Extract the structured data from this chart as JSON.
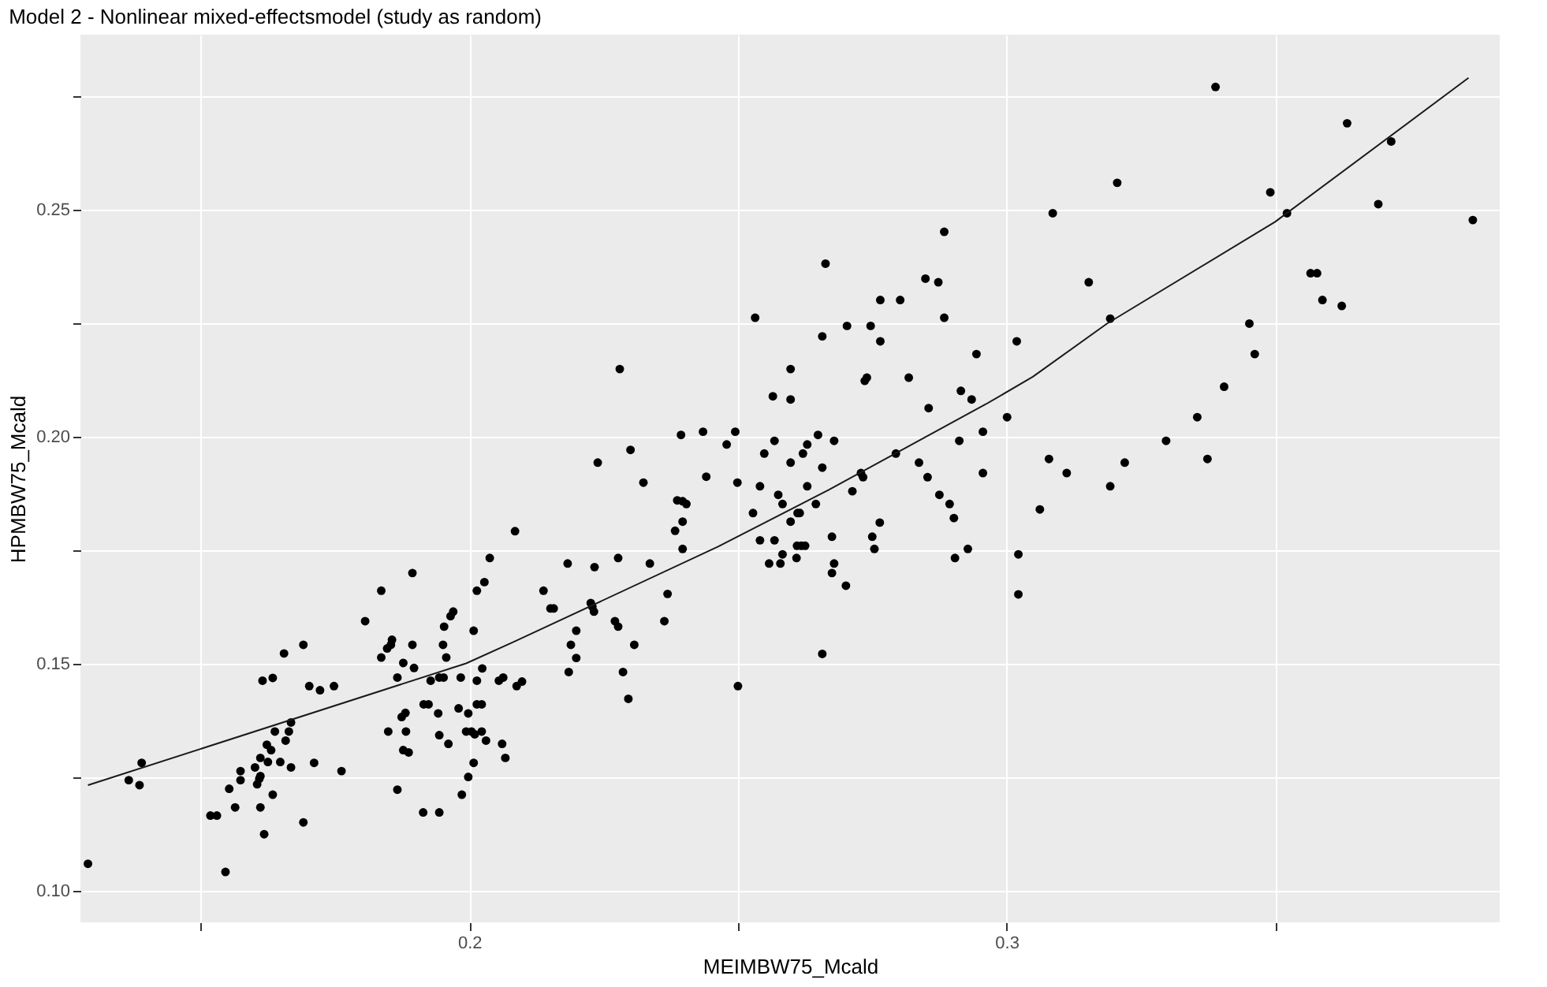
{
  "chart_data": {
    "type": "scatter",
    "title": "Model 2 - Nonlinear mixed-effectsmodel (study as random)",
    "xlabel": "MEIMBW75_Mcald",
    "ylabel": "HPMBW75_Mcald",
    "xlim": [
      0.1276,
      0.3918
    ],
    "ylim": [
      0.0931,
      0.2885
    ],
    "xticks": [
      {
        "value": 0.15,
        "label": null
      },
      {
        "value": 0.2,
        "label": "0.2"
      },
      {
        "value": 0.25,
        "label": null
      },
      {
        "value": 0.3,
        "label": "0.3"
      },
      {
        "value": 0.35,
        "label": null
      }
    ],
    "yticks": [
      {
        "value": 0.1,
        "label": "0.10"
      },
      {
        "value": 0.125,
        "label": null
      },
      {
        "value": 0.15,
        "label": "0.15"
      },
      {
        "value": 0.175,
        "label": null
      },
      {
        "value": 0.2,
        "label": "0.20"
      },
      {
        "value": 0.225,
        "label": null
      },
      {
        "value": 0.25,
        "label": "0.25"
      },
      {
        "value": 0.275,
        "label": null
      }
    ],
    "grid": true,
    "series": [
      {
        "type": "scatter",
        "color": "#000000",
        "marker": "circle",
        "x": [
          0.129,
          0.1546,
          0.1366,
          0.1386,
          0.139,
          0.1518,
          0.153,
          0.1553,
          0.1564,
          0.1574,
          0.1574,
          0.1601,
          0.1605,
          0.1609,
          0.1611,
          0.1611,
          0.1618,
          0.1634,
          0.1611,
          0.1623,
          0.1631,
          0.1625,
          0.1648,
          0.1668,
          0.1658,
          0.1638,
          0.1664,
          0.1668,
          0.1615,
          0.1634,
          0.1655,
          0.1691,
          0.1702,
          0.1722,
          0.1748,
          0.1711,
          0.1691,
          0.1762,
          0.1806,
          0.1836,
          0.1894,
          0.1836,
          0.1847,
          0.1854,
          0.1856,
          0.1877,
          0.1866,
          0.1894,
          0.1897,
          0.1849,
          0.1882,
          0.1874,
          0.1881,
          0.1877,
          0.1887,
          0.1866,
          0.1914,
          0.1944,
          0.1915,
          0.1924,
          0.1942,
          0.1928,
          0.1944,
          0.1952,
          0.1944,
          0.1961,
          0.1951,
          0.1957,
          0.1953,
          0.1965,
          0.197,
          0.1984,
          0.198,
          0.1998,
          0.1994,
          0.2004,
          0.201,
          0.2023,
          0.2031,
          0.2008,
          0.1998,
          0.1986,
          0.2008,
          0.2014,
          0.2028,
          0.2038,
          0.2085,
          0.2014,
          0.2014,
          0.2023,
          0.2024,
          0.2055,
          0.2063,
          0.2061,
          0.2067,
          0.2088,
          0.2098,
          0.2138,
          0.2151,
          0.2157,
          0.228,
          0.2239,
          0.23,
          0.2324,
          0.2394,
          0.2435,
          0.2479,
          0.2495,
          0.2441,
          0.2499,
          0.2387,
          0.2397,
          0.2404,
          0.2397,
          0.2383,
          0.2397,
          0.2183,
          0.2233,
          0.2277,
          0.2336,
          0.2226,
          0.2229,
          0.2232,
          0.2271,
          0.2277,
          0.2199,
          0.2189,
          0.2199,
          0.2185,
          0.2307,
          0.2286,
          0.2296,
          0.2369,
          0.2363,
          0.25,
          0.2657,
          0.2532,
          0.2663,
          0.2657,
          0.2598,
          0.2565,
          0.2598,
          0.2649,
          0.2568,
          0.2549,
          0.2629,
          0.2621,
          0.2598,
          0.2657,
          0.2541,
          0.2629,
          0.2575,
          0.2583,
          0.2645,
          0.2528,
          0.2611,
          0.2615,
          0.2598,
          0.2541,
          0.2568,
          0.261,
          0.2618,
          0.2625,
          0.2583,
          0.2558,
          0.2579,
          0.2609,
          0.2884,
          0.2849,
          0.2873,
          0.2765,
          0.2802,
          0.2884,
          0.2703,
          0.2747,
          0.2765,
          0.3019,
          0.2944,
          0.2736,
          0.274,
          0.2818,
          0.2915,
          0.2935,
          0.2855,
          0.3001,
          0.2679,
          0.2794,
          0.2912,
          0.2956,
          0.2956,
          0.2837,
          0.2853,
          0.2729,
          0.2733,
          0.2713,
          0.2875,
          0.2894,
          0.2902,
          0.2675,
          0.2679,
          0.2675,
          0.2701,
          0.2764,
          0.275,
          0.2754,
          0.2904,
          0.2928,
          0.3022,
          0.3022,
          0.3389,
          0.3634,
          0.3716,
          0.3206,
          0.3086,
          0.3491,
          0.3522,
          0.3692,
          0.3868,
          0.3153,
          0.3193,
          0.3566,
          0.3578,
          0.3588,
          0.3624,
          0.3452,
          0.3462,
          0.3405,
          0.3355,
          0.3297,
          0.3374,
          0.3079,
          0.3112,
          0.322,
          0.3193,
          0.3062
        ],
        "values": [
          0.106,
          0.1042,
          0.1244,
          0.1233,
          0.1282,
          0.1166,
          0.1166,
          0.1225,
          0.1184,
          0.1264,
          0.1244,
          0.1272,
          0.1235,
          0.1247,
          0.1253,
          0.1184,
          0.1125,
          0.1212,
          0.1293,
          0.1322,
          0.131,
          0.1284,
          0.1284,
          0.1272,
          0.1331,
          0.1351,
          0.1351,
          0.1371,
          0.1463,
          0.1469,
          0.1523,
          0.1542,
          0.1451,
          0.1442,
          0.1451,
          0.1282,
          0.1151,
          0.1264,
          0.1594,
          0.1661,
          0.17,
          0.1514,
          0.1534,
          0.1542,
          0.1553,
          0.1502,
          0.147,
          0.1542,
          0.1491,
          0.1351,
          0.1351,
          0.1383,
          0.1392,
          0.131,
          0.1305,
          0.1223,
          0.1173,
          0.1173,
          0.1411,
          0.1411,
          0.1391,
          0.1463,
          0.147,
          0.147,
          0.1343,
          0.1324,
          0.1542,
          0.1514,
          0.1582,
          0.1605,
          0.1615,
          0.147,
          0.1402,
          0.1391,
          0.1351,
          0.1351,
          0.1345,
          0.1351,
          0.1331,
          0.1282,
          0.1251,
          0.1212,
          0.1573,
          0.1661,
          0.168,
          0.1733,
          0.1792,
          0.1463,
          0.1411,
          0.1411,
          0.149,
          0.1463,
          0.147,
          0.1324,
          0.1293,
          0.1451,
          0.1461,
          0.1661,
          0.1622,
          0.1622,
          0.2149,
          0.1943,
          0.1971,
          0.1899,
          0.2004,
          0.2011,
          0.1983,
          0.2011,
          0.1912,
          0.1899,
          0.186,
          0.1858,
          0.1852,
          0.1813,
          0.1793,
          0.1753,
          0.1721,
          0.1713,
          0.1733,
          0.1721,
          0.1634,
          0.1626,
          0.1615,
          0.1594,
          0.1582,
          0.1573,
          0.1542,
          0.1513,
          0.1482,
          0.1542,
          0.1482,
          0.1423,
          0.1654,
          0.1594,
          0.1451,
          0.1522,
          0.2262,
          0.2381,
          0.2221,
          0.2149,
          0.2089,
          0.2082,
          0.2004,
          0.1991,
          0.1963,
          0.1983,
          0.1963,
          0.1943,
          0.1932,
          0.1891,
          0.1891,
          0.1872,
          0.1852,
          0.1852,
          0.1832,
          0.1832,
          0.1832,
          0.1813,
          0.1772,
          0.1772,
          0.176,
          0.176,
          0.176,
          0.1741,
          0.1721,
          0.1721,
          0.1733,
          0.2451,
          0.2348,
          0.234,
          0.2301,
          0.2301,
          0.2262,
          0.2244,
          0.2244,
          0.221,
          0.221,
          0.2182,
          0.2123,
          0.213,
          0.213,
          0.2101,
          0.2082,
          0.2063,
          0.2043,
          0.1991,
          0.1963,
          0.1991,
          0.2011,
          0.192,
          0.1943,
          0.1911,
          0.192,
          0.1911,
          0.188,
          0.1872,
          0.1852,
          0.1821,
          0.178,
          0.1721,
          0.17,
          0.1672,
          0.1811,
          0.178,
          0.1753,
          0.1733,
          0.1753,
          0.1741,
          0.1653,
          0.277,
          0.269,
          0.265,
          0.2559,
          0.2492,
          0.2538,
          0.2492,
          0.2512,
          0.2477,
          0.234,
          0.226,
          0.236,
          0.236,
          0.2301,
          0.2288,
          0.2249,
          0.2182,
          0.211,
          0.2043,
          0.1991,
          0.1951,
          0.1951,
          0.192,
          0.1943,
          0.1891,
          0.184
        ]
      },
      {
        "type": "line",
        "color": "#1a1a1a",
        "line_style": "solid",
        "marker": "none",
        "x": [
          0.129,
          0.1994,
          0.2082,
          0.2463,
          0.2669,
          0.2962,
          0.3049,
          0.3187,
          0.35,
          0.386
        ],
        "values": [
          0.1233,
          0.1501,
          0.1548,
          0.1758,
          0.1883,
          0.2072,
          0.2132,
          0.2249,
          0.2473,
          0.279
        ]
      }
    ]
  }
}
